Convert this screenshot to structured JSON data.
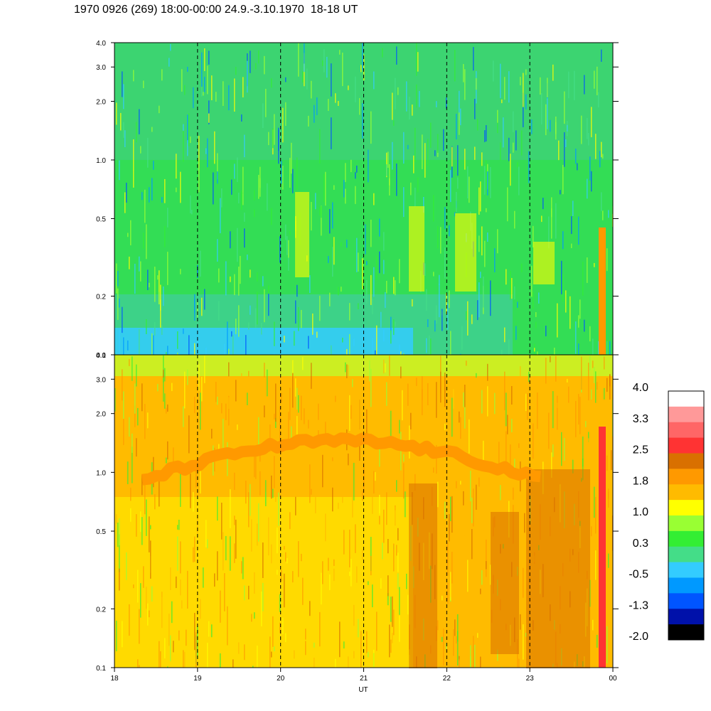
{
  "title": "1970 0926 (269) 18:00-00:00 24.9.-3.10.1970  18-18 UT",
  "chart_data": [
    {
      "type": "heatmap",
      "panel": "upper",
      "x_range": [
        18,
        24
      ],
      "y_scale": "log",
      "ylim": [
        0.1,
        4.0
      ],
      "y_ticks": [
        "4.0",
        "3.0",
        "2.0",
        "1.0",
        "0.5",
        "0.2",
        "0.1"
      ],
      "y_tick_values": [
        4.0,
        3.0,
        2.0,
        1.0,
        0.5,
        0.2,
        0.1
      ],
      "dominant_levels": [
        "0.3",
        "-0.5",
        "1.0"
      ]
    },
    {
      "type": "heatmap",
      "panel": "lower",
      "x_range": [
        18,
        24
      ],
      "y_scale": "log",
      "ylim": [
        0.1,
        4.0
      ],
      "y_ticks": [
        "4.0",
        "3.0",
        "2.0",
        "1.0",
        "0.5",
        "0.2",
        "0.1"
      ],
      "y_tick_values": [
        4.0,
        3.0,
        2.0,
        1.0,
        0.5,
        0.2,
        0.1
      ],
      "dominant_levels": [
        "1.0",
        "1.8"
      ]
    }
  ],
  "x_axis": {
    "label": "UT",
    "ticks": [
      "18",
      "19",
      "20",
      "21",
      "22",
      "23",
      "00"
    ],
    "tick_values": [
      18,
      19,
      20,
      21,
      22,
      23,
      24
    ]
  },
  "colorbar": {
    "labels": [
      "4.0",
      "3.3",
      "2.5",
      "1.8",
      "1.0",
      "0.3",
      "-0.5",
      "-1.3",
      "-2.0"
    ],
    "colors_top_to_bottom": [
      "#ffffff",
      "#ff9999",
      "#ff6666",
      "#ff3333",
      "#d97000",
      "#ff9900",
      "#ffbb00",
      "#ffff00",
      "#99ff33",
      "#33ee33",
      "#44dd88",
      "#33ccff",
      "#0099ff",
      "#0055ff",
      "#0011aa",
      "#000000"
    ]
  }
}
